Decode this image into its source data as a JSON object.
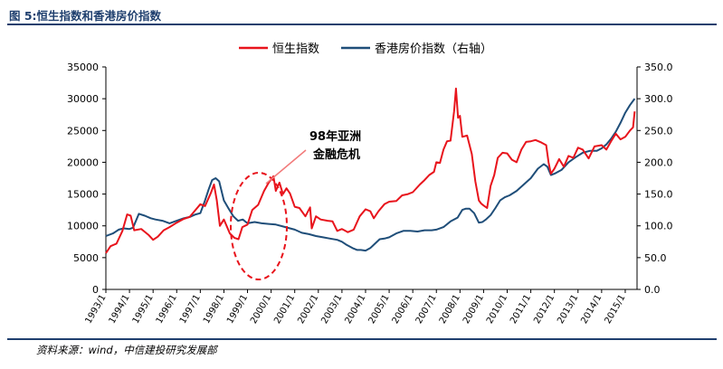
{
  "figure_title": "图 5:恒生指数和香港房价指数",
  "source_note": "资料来源：wind，中信建投研究发展部",
  "annotation": {
    "line1": "98年亚洲",
    "line2": "金融危机"
  },
  "colors": {
    "hsi": "#e8141c",
    "housing": "#1f4e79",
    "annotation": "#000000",
    "arrow": "#f27a7a",
    "ellipse": "#e8141c",
    "rule": "#1f3f6e"
  },
  "chart_data": {
    "type": "line",
    "title": "",
    "legend_position": "top-center",
    "x_tick_labels": [
      "1993/1",
      "1994/1",
      "1995/1",
      "1996/1",
      "1997/1",
      "1998/1",
      "1999/1",
      "2000/1",
      "2001/1",
      "2002/1",
      "2003/1",
      "2004/1",
      "2005/1",
      "2006/1",
      "2007/1",
      "2008/1",
      "2009/1",
      "2010/1",
      "2011/1",
      "2012/1",
      "2013/1",
      "2014/1",
      "2015/1"
    ],
    "xlim": [
      1993.0,
      2015.5
    ],
    "y_left": {
      "min": 0,
      "max": 35000,
      "ticks": [
        "0",
        "5000",
        "10000",
        "15000",
        "20000",
        "25000",
        "30000",
        "35000"
      ]
    },
    "y_right": {
      "min": 0,
      "max": 350,
      "ticks": [
        "0.0",
        "50.0",
        "100.0",
        "150.0",
        "200.0",
        "250.0",
        "300.0",
        "350.0"
      ]
    },
    "grid": false,
    "series": [
      {
        "name": "恒生指数",
        "axis": "left",
        "color": "#e8141c",
        "x": [
          1993.0,
          1993.2,
          1993.45,
          1993.7,
          1993.9,
          1994.05,
          1994.2,
          1994.5,
          1994.8,
          1995.0,
          1995.2,
          1995.45,
          1995.7,
          1996.0,
          1996.3,
          1996.55,
          1996.8,
          1997.0,
          1997.2,
          1997.45,
          1997.58,
          1997.7,
          1997.83,
          1998.0,
          1998.25,
          1998.45,
          1998.62,
          1998.78,
          1999.0,
          1999.2,
          1999.45,
          1999.7,
          1999.9,
          2000.1,
          2000.2,
          2000.35,
          2000.5,
          2000.65,
          2000.8,
          2001.0,
          2001.2,
          2001.45,
          2001.65,
          2001.72,
          2001.9,
          2002.1,
          2002.4,
          2002.6,
          2002.8,
          2003.0,
          2003.25,
          2003.5,
          2003.75,
          2004.0,
          2004.2,
          2004.35,
          2004.55,
          2004.8,
          2005.0,
          2005.3,
          2005.55,
          2005.8,
          2006.0,
          2006.3,
          2006.5,
          2006.7,
          2006.9,
          2007.0,
          2007.15,
          2007.3,
          2007.45,
          2007.6,
          2007.75,
          2007.83,
          2007.92,
          2008.0,
          2008.1,
          2008.3,
          2008.5,
          2008.65,
          2008.8,
          2008.9,
          2009.0,
          2009.15,
          2009.3,
          2009.45,
          2009.6,
          2009.8,
          2010.0,
          2010.2,
          2010.4,
          2010.6,
          2010.8,
          2011.0,
          2011.2,
          2011.45,
          2011.65,
          2011.75,
          2011.85,
          2012.0,
          2012.2,
          2012.4,
          2012.6,
          2012.8,
          2013.0,
          2013.2,
          2013.45,
          2013.7,
          2014.0,
          2014.2,
          2014.4,
          2014.6,
          2014.8,
          2015.0,
          2015.2,
          2015.33,
          2015.4
        ],
        "y": [
          5700,
          6800,
          7200,
          9200,
          11800,
          11600,
          9300,
          9500,
          8600,
          7800,
          8300,
          9300,
          9800,
          10500,
          11100,
          11400,
          12500,
          13400,
          13100,
          15200,
          16500,
          14000,
          10000,
          11000,
          8800,
          8100,
          7900,
          9800,
          10200,
          12500,
          13300,
          15500,
          16800,
          17800,
          15500,
          16800,
          15000,
          15900,
          15100,
          13000,
          12800,
          11500,
          12900,
          9600,
          11500,
          11000,
          10800,
          10700,
          9200,
          9500,
          9000,
          9400,
          11500,
          12600,
          12300,
          11200,
          12300,
          13400,
          13800,
          13900,
          14800,
          15000,
          15300,
          16500,
          17200,
          18000,
          18500,
          20000,
          19900,
          22000,
          23300,
          23400,
          28000,
          31600,
          27000,
          27300,
          24000,
          24200,
          21300,
          17000,
          14000,
          13500,
          13200,
          12800,
          16300,
          18000,
          20700,
          21500,
          21400,
          20400,
          20000,
          22000,
          23200,
          23300,
          23500,
          23100,
          22700,
          20000,
          18200,
          19000,
          20500,
          19300,
          21000,
          20700,
          22300,
          22000,
          20600,
          22500,
          22700,
          22000,
          23300,
          24500,
          23600,
          24000,
          25000,
          25500,
          28000
        ]
      },
      {
        "name": "香港房价指数（右轴）",
        "axis": "right",
        "color": "#1f4e79",
        "x": [
          1993.0,
          1993.3,
          1993.55,
          1993.75,
          1994.0,
          1994.15,
          1994.4,
          1994.65,
          1994.9,
          1995.1,
          1995.4,
          1995.7,
          1996.0,
          1996.3,
          1996.55,
          1996.8,
          1997.0,
          1997.2,
          1997.35,
          1997.5,
          1997.65,
          1997.8,
          1998.0,
          1998.2,
          1998.4,
          1998.6,
          1998.8,
          1999.0,
          1999.3,
          1999.6,
          1999.9,
          2000.2,
          2000.5,
          2000.8,
          2001.0,
          2001.3,
          2001.6,
          2001.9,
          2002.2,
          2002.5,
          2002.8,
          2003.0,
          2003.2,
          2003.45,
          2003.65,
          2003.8,
          2004.0,
          2004.2,
          2004.4,
          2004.6,
          2004.8,
          2005.0,
          2005.3,
          2005.6,
          2005.9,
          2006.2,
          2006.5,
          2006.8,
          2007.0,
          2007.3,
          2007.6,
          2007.9,
          2008.1,
          2008.25,
          2008.4,
          2008.6,
          2008.8,
          2008.95,
          2009.1,
          2009.3,
          2009.5,
          2009.7,
          2009.9,
          2010.1,
          2010.4,
          2010.7,
          2011.0,
          2011.3,
          2011.55,
          2011.7,
          2011.85,
          2012.0,
          2012.3,
          2012.6,
          2012.9,
          2013.2,
          2013.5,
          2013.8,
          2014.0,
          2014.2,
          2014.4,
          2014.6,
          2014.8,
          2015.0,
          2015.2,
          2015.4
        ],
        "y": [
          84,
          88,
          94,
          96,
          95,
          97,
          119,
          116,
          112,
          110,
          108,
          104,
          108,
          112,
          114,
          118,
          120,
          140,
          157,
          172,
          175,
          170,
          140,
          127,
          115,
          108,
          110,
          104,
          106,
          104,
          103,
          102,
          99,
          96,
          94,
          89,
          87,
          84,
          82,
          80,
          78,
          75,
          70,
          65,
          62,
          62,
          61,
          65,
          72,
          79,
          80,
          82,
          88,
          92,
          92,
          91,
          93,
          93,
          94,
          98,
          107,
          113,
          125,
          127,
          127,
          120,
          105,
          106,
          110,
          117,
          128,
          140,
          145,
          148,
          155,
          165,
          175,
          190,
          197,
          193,
          180,
          182,
          188,
          200,
          208,
          215,
          218,
          218,
          222,
          228,
          237,
          248,
          262,
          278,
          290,
          300
        ]
      }
    ]
  }
}
